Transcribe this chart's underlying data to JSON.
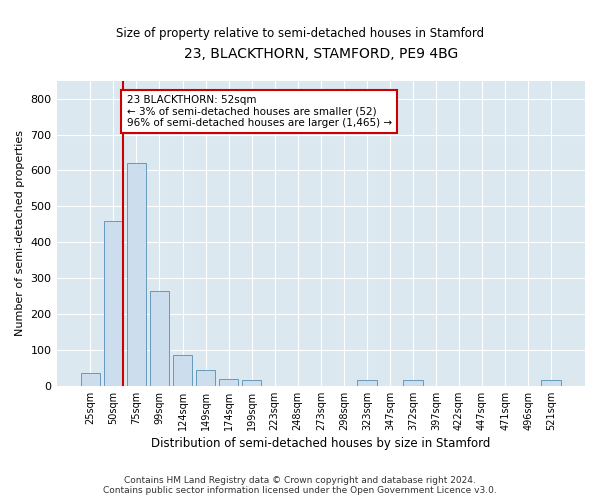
{
  "title": "23, BLACKTHORN, STAMFORD, PE9 4BG",
  "subtitle": "Size of property relative to semi-detached houses in Stamford",
  "xlabel": "Distribution of semi-detached houses by size in Stamford",
  "ylabel": "Number of semi-detached properties",
  "categories": [
    "25sqm",
    "50sqm",
    "75sqm",
    "99sqm",
    "124sqm",
    "149sqm",
    "174sqm",
    "199sqm",
    "223sqm",
    "248sqm",
    "273sqm",
    "298sqm",
    "323sqm",
    "347sqm",
    "372sqm",
    "397sqm",
    "422sqm",
    "447sqm",
    "471sqm",
    "496sqm",
    "521sqm"
  ],
  "bar_values": [
    35,
    460,
    620,
    265,
    85,
    45,
    20,
    15,
    0,
    0,
    0,
    0,
    15,
    0,
    15,
    0,
    0,
    0,
    0,
    0,
    15
  ],
  "bar_color": "#ccdded",
  "bar_edge_color": "#6699bb",
  "red_line_color": "#cc0000",
  "red_line_bar_index": 1,
  "property_label": "23 BLACKTHORN: 52sqm",
  "annotation_line1": "← 3% of semi-detached houses are smaller (52)",
  "annotation_line2": "96% of semi-detached houses are larger (1,465) →",
  "annotation_box_facecolor": "#ffffff",
  "annotation_box_edgecolor": "#cc0000",
  "ylim": [
    0,
    850
  ],
  "yticks": [
    0,
    100,
    200,
    300,
    400,
    500,
    600,
    700,
    800
  ],
  "background_color": "#dce8f0",
  "footer_line1": "Contains HM Land Registry data © Crown copyright and database right 2024.",
  "footer_line2": "Contains public sector information licensed under the Open Government Licence v3.0."
}
